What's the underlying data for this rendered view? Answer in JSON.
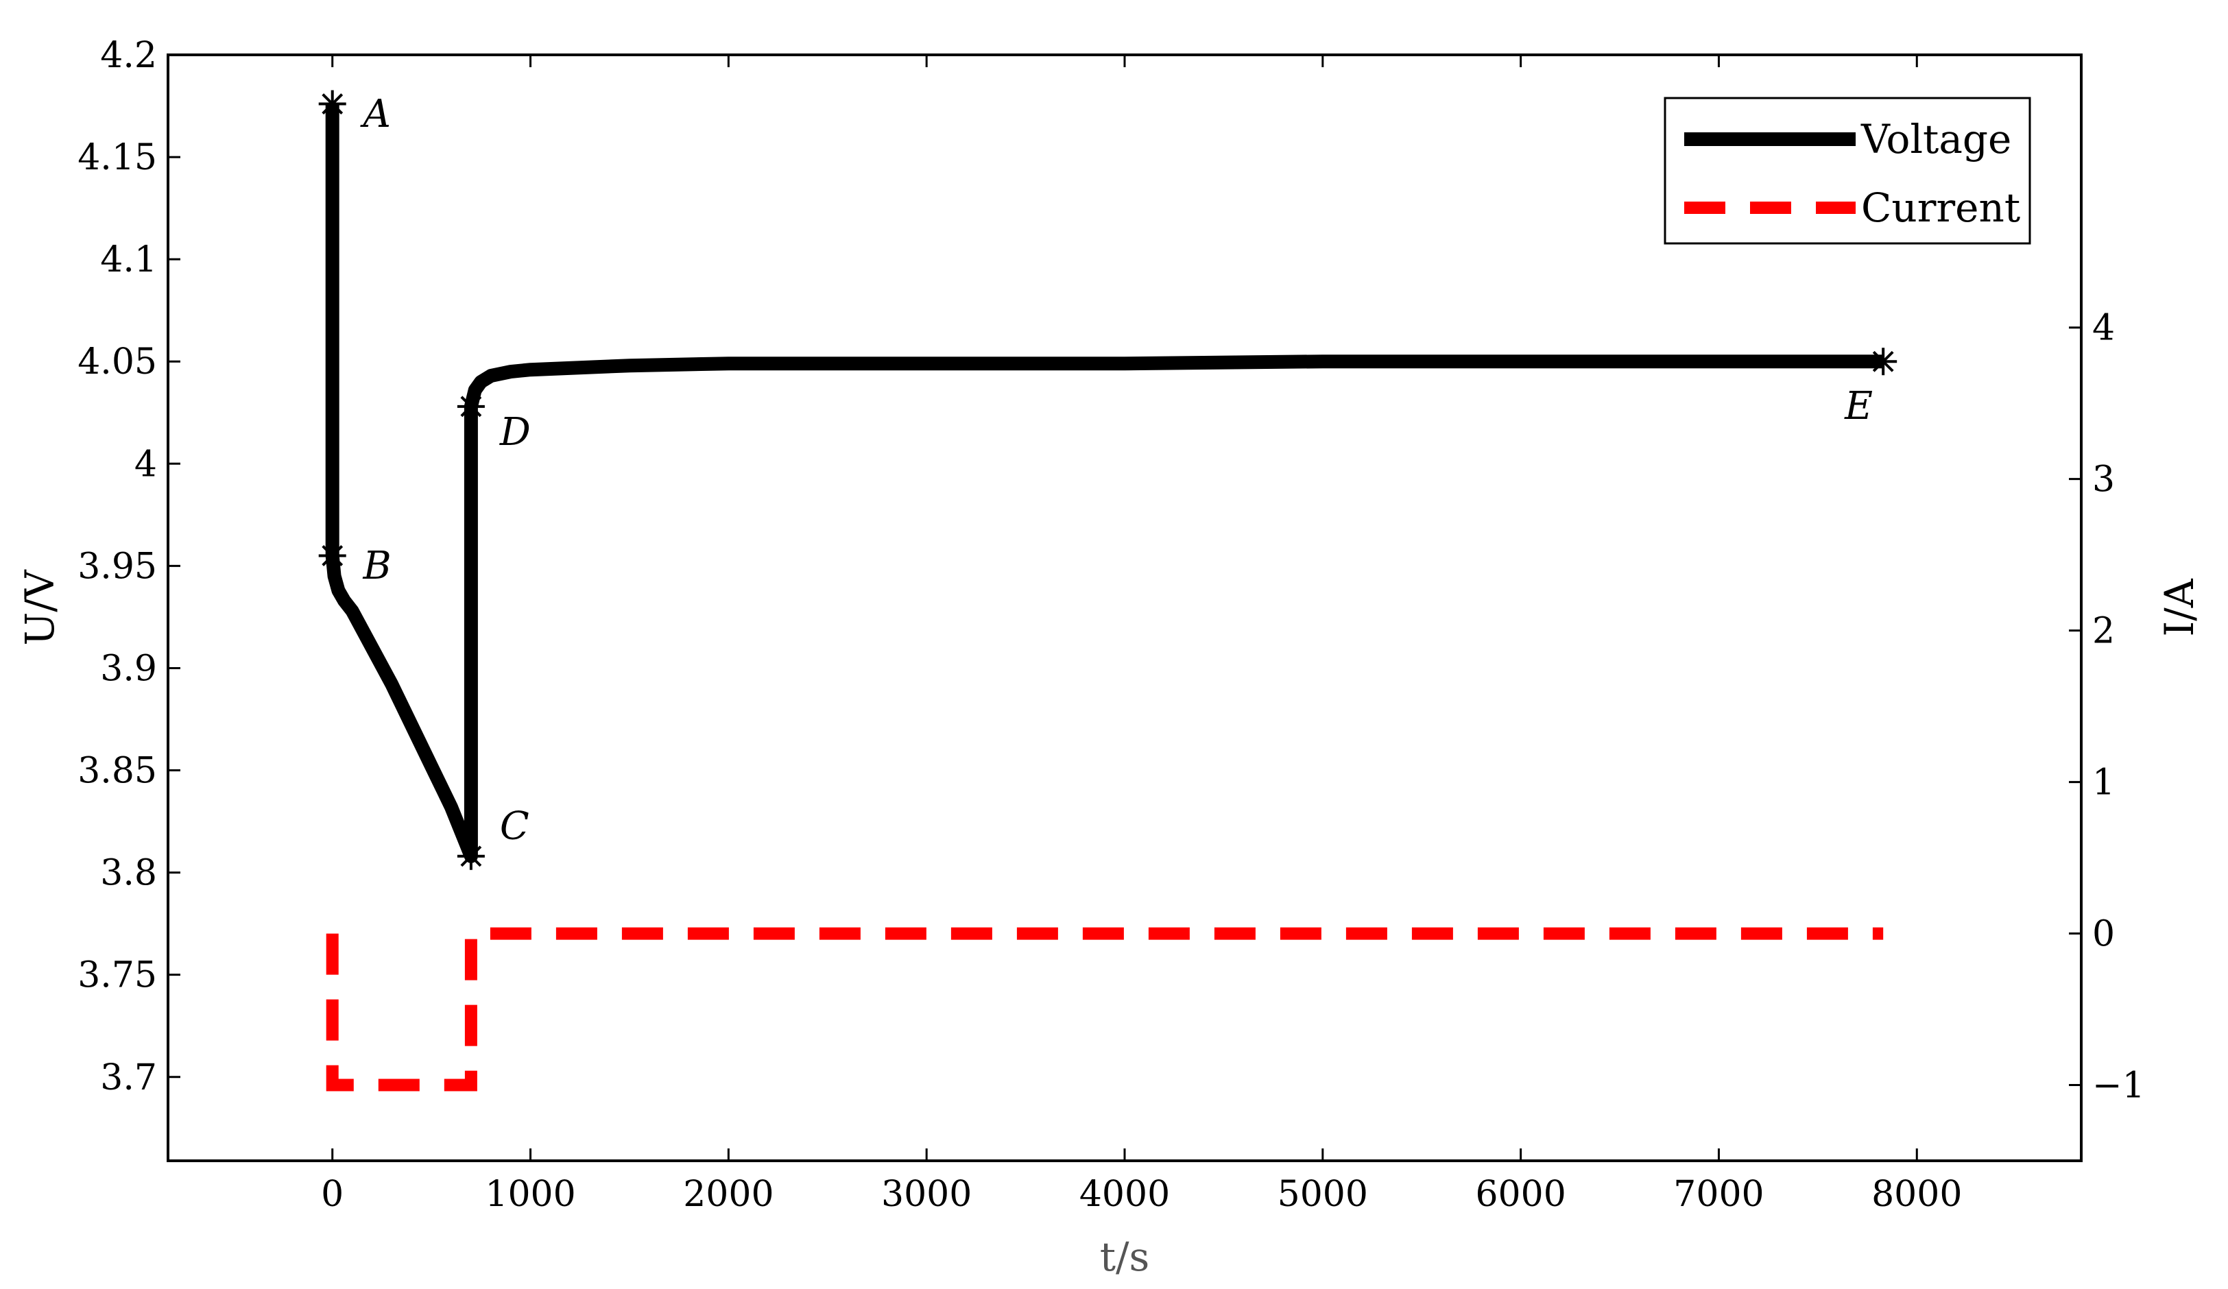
{
  "chart_data": {
    "type": "line",
    "title": "",
    "xlabel": "t/s",
    "ylabel": "U/V",
    "y2label": "I/A",
    "xlim": [
      -830,
      8830
    ],
    "ylim": [
      3.659,
      4.2
    ],
    "y2lim": [
      -1.5,
      5.8
    ],
    "xticks": [
      0,
      1000,
      2000,
      3000,
      4000,
      5000,
      6000,
      7000,
      8000
    ],
    "xtick_labels": [
      "0",
      "1000",
      "2000",
      "3000",
      "4000",
      "5000",
      "6000",
      "7000",
      "8000"
    ],
    "yticks": [
      3.7,
      3.75,
      3.8,
      3.85,
      3.9,
      3.95,
      4.0,
      4.05,
      4.1,
      4.15,
      4.2
    ],
    "ytick_labels": [
      "3.7",
      "3.75",
      "3.8",
      "3.85",
      "3.9",
      "3.95",
      "4",
      "4.05",
      "4.1",
      "4.15",
      "4.2"
    ],
    "y2ticks": [
      -1,
      0,
      1,
      2,
      3,
      4
    ],
    "y2tick_labels": [
      "−1",
      "0",
      "1",
      "2",
      "3",
      "4"
    ],
    "grid": false,
    "legend_position": "top-right",
    "series": [
      {
        "name": "Voltage",
        "axis": "left",
        "color": "#000000",
        "style": "solid",
        "x": [
          0,
          0,
          10,
          30,
          60,
          100,
          200,
          300,
          400,
          500,
          600,
          700,
          700,
          700,
          720,
          750,
          800,
          900,
          1000,
          1500,
          2000,
          3000,
          4000,
          5000,
          6000,
          7000,
          7830
        ],
        "y": [
          4.176,
          3.955,
          3.945,
          3.938,
          3.933,
          3.928,
          3.91,
          3.892,
          3.872,
          3.852,
          3.832,
          3.808,
          3.808,
          4.028,
          4.036,
          4.04,
          4.043,
          4.045,
          4.046,
          4.048,
          4.049,
          4.049,
          4.049,
          4.05,
          4.05,
          4.05,
          4.05
        ]
      },
      {
        "name": "Current",
        "axis": "right",
        "color": "#ff0000",
        "style": "dashed",
        "x": [
          0,
          0,
          700,
          700,
          7830
        ],
        "y": [
          0,
          -1,
          -1,
          0,
          0
        ]
      }
    ],
    "markers": [
      {
        "label": "A",
        "x": 0,
        "y": 4.176,
        "label_dx": 0.8,
        "label_dy": 0.6
      },
      {
        "label": "B",
        "x": 0,
        "y": 3.955,
        "label_dx": 0.8,
        "label_dy": 0.6
      },
      {
        "label": "C",
        "x": 700,
        "y": 3.808,
        "label_dx": 0.75,
        "label_dy": -0.45
      },
      {
        "label": "D",
        "x": 700,
        "y": 4.028,
        "label_dx": 0.75,
        "label_dy": 1.0
      },
      {
        "label": "E",
        "x": 7830,
        "y": 4.05,
        "label_dx": -1.0,
        "label_dy": 1.5
      }
    ]
  }
}
